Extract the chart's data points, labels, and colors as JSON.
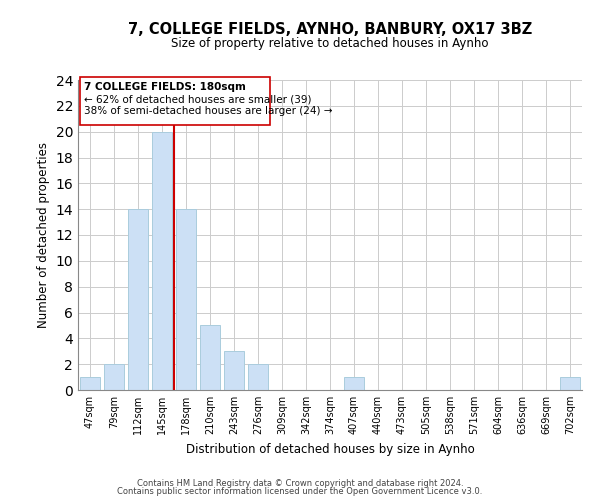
{
  "title": "7, COLLEGE FIELDS, AYNHO, BANBURY, OX17 3BZ",
  "subtitle": "Size of property relative to detached houses in Aynho",
  "xlabel": "Distribution of detached houses by size in Aynho",
  "ylabel": "Number of detached properties",
  "bar_labels": [
    "47sqm",
    "79sqm",
    "112sqm",
    "145sqm",
    "178sqm",
    "210sqm",
    "243sqm",
    "276sqm",
    "309sqm",
    "342sqm",
    "374sqm",
    "407sqm",
    "440sqm",
    "473sqm",
    "505sqm",
    "538sqm",
    "571sqm",
    "604sqm",
    "636sqm",
    "669sqm",
    "702sqm"
  ],
  "bar_values": [
    1,
    2,
    14,
    20,
    14,
    5,
    3,
    2,
    0,
    0,
    0,
    1,
    0,
    0,
    0,
    0,
    0,
    0,
    0,
    0,
    1
  ],
  "bar_color": "#cce0f5",
  "bar_edgecolor": "#aaccdd",
  "vline_x": 3.5,
  "vline_color": "#cc0000",
  "ylim": [
    0,
    24
  ],
  "yticks": [
    0,
    2,
    4,
    6,
    8,
    10,
    12,
    14,
    16,
    18,
    20,
    22,
    24
  ],
  "annotation_box_text_line1": "7 COLLEGE FIELDS: 180sqm",
  "annotation_box_text_line2": "← 62% of detached houses are smaller (39)",
  "annotation_box_text_line3": "38% of semi-detached houses are larger (24) →",
  "footer_line1": "Contains HM Land Registry data © Crown copyright and database right 2024.",
  "footer_line2": "Contains public sector information licensed under the Open Government Licence v3.0.",
  "background_color": "#ffffff",
  "grid_color": "#cccccc"
}
